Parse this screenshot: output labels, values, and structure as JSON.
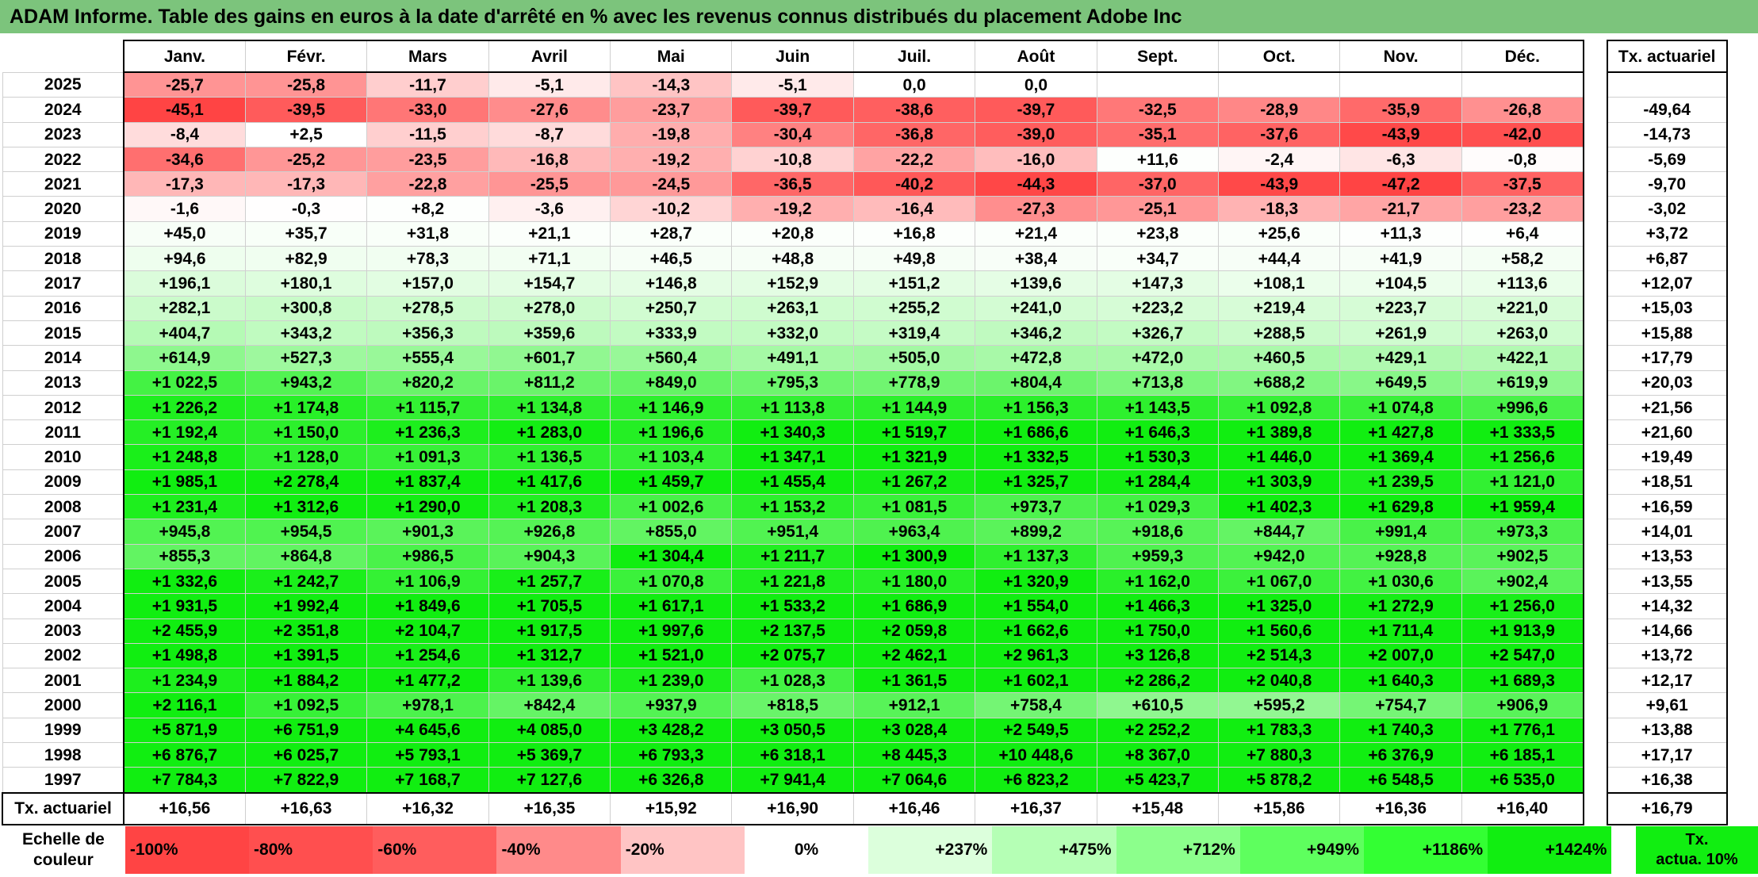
{
  "title": "ADAM Informe. Table des gains en euros à la date d'arrêté en % avec les revenus connus distribués du placement Adobe Inc",
  "months": [
    "Janv.",
    "Févr.",
    "Mars",
    "Avril",
    "Mai",
    "Juin",
    "Juil.",
    "Août",
    "Sept.",
    "Oct.",
    "Nov.",
    "Déc."
  ],
  "tx_header": "Tx. actuariel",
  "rows": [
    {
      "year": "2025",
      "values": [
        "-25,7",
        "-25,8",
        "-11,7",
        "-5,1",
        "-14,3",
        "-5,1",
        "0,0",
        "0,0",
        "",
        "",
        "",
        ""
      ],
      "tx": ""
    },
    {
      "year": "2024",
      "values": [
        "-45,1",
        "-39,5",
        "-33,0",
        "-27,6",
        "-23,7",
        "-39,7",
        "-38,6",
        "-39,7",
        "-32,5",
        "-28,9",
        "-35,9",
        "-26,8"
      ],
      "tx": "-49,64"
    },
    {
      "year": "2023",
      "values": [
        "-8,4",
        "+2,5",
        "-11,5",
        "-8,7",
        "-19,8",
        "-30,4",
        "-36,8",
        "-39,0",
        "-35,1",
        "-37,6",
        "-43,9",
        "-42,0"
      ],
      "tx": "-14,73"
    },
    {
      "year": "2022",
      "values": [
        "-34,6",
        "-25,2",
        "-23,5",
        "-16,8",
        "-19,2",
        "-10,8",
        "-22,2",
        "-16,0",
        "+11,6",
        "-2,4",
        "-6,3",
        "-0,8"
      ],
      "tx": "-5,69"
    },
    {
      "year": "2021",
      "values": [
        "-17,3",
        "-17,3",
        "-22,8",
        "-25,5",
        "-24,5",
        "-36,5",
        "-40,2",
        "-44,3",
        "-37,0",
        "-43,9",
        "-47,2",
        "-37,5"
      ],
      "tx": "-9,70"
    },
    {
      "year": "2020",
      "values": [
        "-1,6",
        "-0,3",
        "+8,2",
        "-3,6",
        "-10,2",
        "-19,2",
        "-16,4",
        "-27,3",
        "-25,1",
        "-18,3",
        "-21,7",
        "-23,2"
      ],
      "tx": "-3,02"
    },
    {
      "year": "2019",
      "values": [
        "+45,0",
        "+35,7",
        "+31,8",
        "+21,1",
        "+28,7",
        "+20,8",
        "+16,8",
        "+21,4",
        "+23,8",
        "+25,6",
        "+11,3",
        "+6,4"
      ],
      "tx": "+3,72"
    },
    {
      "year": "2018",
      "values": [
        "+94,6",
        "+82,9",
        "+78,3",
        "+71,1",
        "+46,5",
        "+48,8",
        "+49,8",
        "+38,4",
        "+34,7",
        "+44,4",
        "+41,9",
        "+58,2"
      ],
      "tx": "+6,87"
    },
    {
      "year": "2017",
      "values": [
        "+196,1",
        "+180,1",
        "+157,0",
        "+154,7",
        "+146,8",
        "+152,9",
        "+151,2",
        "+139,6",
        "+147,3",
        "+108,1",
        "+104,5",
        "+113,6"
      ],
      "tx": "+12,07"
    },
    {
      "year": "2016",
      "values": [
        "+282,1",
        "+300,8",
        "+278,5",
        "+278,0",
        "+250,7",
        "+263,1",
        "+255,2",
        "+241,0",
        "+223,2",
        "+219,4",
        "+223,7",
        "+221,0"
      ],
      "tx": "+15,03"
    },
    {
      "year": "2015",
      "values": [
        "+404,7",
        "+343,2",
        "+356,3",
        "+359,6",
        "+333,9",
        "+332,0",
        "+319,4",
        "+346,2",
        "+326,7",
        "+288,5",
        "+261,9",
        "+263,0"
      ],
      "tx": "+15,88"
    },
    {
      "year": "2014",
      "values": [
        "+614,9",
        "+527,3",
        "+555,4",
        "+601,7",
        "+560,4",
        "+491,1",
        "+505,0",
        "+472,8",
        "+472,0",
        "+460,5",
        "+429,1",
        "+422,1"
      ],
      "tx": "+17,79"
    },
    {
      "year": "2013",
      "values": [
        "+1 022,5",
        "+943,2",
        "+820,2",
        "+811,2",
        "+849,0",
        "+795,3",
        "+778,9",
        "+804,4",
        "+713,8",
        "+688,2",
        "+649,5",
        "+619,9"
      ],
      "tx": "+20,03"
    },
    {
      "year": "2012",
      "values": [
        "+1 226,2",
        "+1 174,8",
        "+1 115,7",
        "+1 134,8",
        "+1 146,9",
        "+1 113,8",
        "+1 144,9",
        "+1 156,3",
        "+1 143,5",
        "+1 092,8",
        "+1 074,8",
        "+996,6"
      ],
      "tx": "+21,56"
    },
    {
      "year": "2011",
      "values": [
        "+1 192,4",
        "+1 150,0",
        "+1 236,3",
        "+1 283,0",
        "+1 196,6",
        "+1 340,3",
        "+1 519,7",
        "+1 686,6",
        "+1 646,3",
        "+1 389,8",
        "+1 427,8",
        "+1 333,5"
      ],
      "tx": "+21,60"
    },
    {
      "year": "2010",
      "values": [
        "+1 248,8",
        "+1 128,0",
        "+1 091,3",
        "+1 136,5",
        "+1 103,4",
        "+1 347,1",
        "+1 321,9",
        "+1 332,5",
        "+1 530,3",
        "+1 446,0",
        "+1 369,4",
        "+1 256,6"
      ],
      "tx": "+19,49"
    },
    {
      "year": "2009",
      "values": [
        "+1 985,1",
        "+2 278,4",
        "+1 837,4",
        "+1 417,6",
        "+1 459,7",
        "+1 455,4",
        "+1 267,2",
        "+1 325,7",
        "+1 284,4",
        "+1 303,9",
        "+1 239,5",
        "+1 121,0"
      ],
      "tx": "+18,51"
    },
    {
      "year": "2008",
      "values": [
        "+1 231,4",
        "+1 312,6",
        "+1 290,0",
        "+1 208,3",
        "+1 002,6",
        "+1 153,2",
        "+1 081,5",
        "+973,7",
        "+1 029,3",
        "+1 402,3",
        "+1 629,8",
        "+1 959,4"
      ],
      "tx": "+16,59"
    },
    {
      "year": "2007",
      "values": [
        "+945,8",
        "+954,5",
        "+901,3",
        "+926,8",
        "+855,0",
        "+951,4",
        "+963,4",
        "+899,2",
        "+918,6",
        "+844,7",
        "+991,4",
        "+973,3"
      ],
      "tx": "+14,01"
    },
    {
      "year": "2006",
      "values": [
        "+855,3",
        "+864,8",
        "+986,5",
        "+904,3",
        "+1 304,4",
        "+1 211,7",
        "+1 300,9",
        "+1 137,3",
        "+959,3",
        "+942,0",
        "+928,8",
        "+902,5"
      ],
      "tx": "+13,53"
    },
    {
      "year": "2005",
      "values": [
        "+1 332,6",
        "+1 242,7",
        "+1 106,9",
        "+1 257,7",
        "+1 070,8",
        "+1 221,8",
        "+1 180,0",
        "+1 320,9",
        "+1 162,0",
        "+1 067,0",
        "+1 030,6",
        "+902,4"
      ],
      "tx": "+13,55"
    },
    {
      "year": "2004",
      "values": [
        "+1 931,5",
        "+1 992,4",
        "+1 849,6",
        "+1 705,5",
        "+1 617,1",
        "+1 533,2",
        "+1 686,9",
        "+1 554,0",
        "+1 466,3",
        "+1 325,0",
        "+1 272,9",
        "+1 256,0"
      ],
      "tx": "+14,32"
    },
    {
      "year": "2003",
      "values": [
        "+2 455,9",
        "+2 351,8",
        "+2 104,7",
        "+1 917,5",
        "+1 997,6",
        "+2 137,5",
        "+2 059,8",
        "+1 662,6",
        "+1 750,0",
        "+1 560,6",
        "+1 711,4",
        "+1 913,9"
      ],
      "tx": "+14,66"
    },
    {
      "year": "2002",
      "values": [
        "+1 498,8",
        "+1 391,5",
        "+1 254,6",
        "+1 312,7",
        "+1 521,0",
        "+2 075,7",
        "+2 462,1",
        "+2 961,3",
        "+3 126,8",
        "+2 514,3",
        "+2 007,0",
        "+2 547,0"
      ],
      "tx": "+13,72"
    },
    {
      "year": "2001",
      "values": [
        "+1 234,9",
        "+1 884,2",
        "+1 477,2",
        "+1 139,6",
        "+1 239,0",
        "+1 028,3",
        "+1 361,5",
        "+1 602,1",
        "+2 286,2",
        "+2 040,8",
        "+1 640,3",
        "+1 689,3"
      ],
      "tx": "+12,17"
    },
    {
      "year": "2000",
      "values": [
        "+2 116,1",
        "+1 092,5",
        "+978,1",
        "+842,4",
        "+937,9",
        "+818,5",
        "+912,1",
        "+758,4",
        "+610,5",
        "+595,2",
        "+754,7",
        "+906,9"
      ],
      "tx": "+9,61"
    },
    {
      "year": "1999",
      "values": [
        "+5 871,9",
        "+6 751,9",
        "+4 645,6",
        "+4 085,0",
        "+3 428,2",
        "+3 050,5",
        "+3 028,4",
        "+2 549,5",
        "+2 252,2",
        "+1 783,3",
        "+1 740,3",
        "+1 776,1"
      ],
      "tx": "+13,88"
    },
    {
      "year": "1998",
      "values": [
        "+6 876,7",
        "+6 025,7",
        "+5 793,1",
        "+5 369,7",
        "+6 793,3",
        "+6 318,1",
        "+8 445,3",
        "+10 448,6",
        "+8 367,0",
        "+7 880,3",
        "+6 376,9",
        "+6 185,1"
      ],
      "tx": "+17,17"
    },
    {
      "year": "1997",
      "values": [
        "+7 784,3",
        "+7 822,9",
        "+7 168,7",
        "+7 127,6",
        "+6 326,8",
        "+7 941,4",
        "+7 064,6",
        "+6 823,2",
        "+5 423,7",
        "+5 878,2",
        "+6 548,5",
        "+6 535,0"
      ],
      "tx": "+16,38"
    }
  ],
  "summary": {
    "label": "Tx. actuariel",
    "values": [
      "+16,56",
      "+16,63",
      "+16,32",
      "+16,35",
      "+15,92",
      "+16,90",
      "+16,46",
      "+16,37",
      "+15,48",
      "+15,86",
      "+16,36",
      "+16,40"
    ],
    "tx": "+16,79"
  },
  "scale": {
    "label_line1": "Echelle de",
    "label_line2": "couleur",
    "steps": [
      {
        "label": "-100%",
        "color": "#ff4444"
      },
      {
        "label": "-80%",
        "color": "#ff4f4f"
      },
      {
        "label": "-60%",
        "color": "#ff5d5d"
      },
      {
        "label": "-40%",
        "color": "#ff8a8a"
      },
      {
        "label": "-20%",
        "color": "#ffc4c4"
      },
      {
        "label": "0%",
        "color": "#ffffff"
      },
      {
        "label": "+237%",
        "color": "#dcffdc"
      },
      {
        "label": "+475%",
        "color": "#b5ffb5"
      },
      {
        "label": "+712%",
        "color": "#8cff8c"
      },
      {
        "label": "+949%",
        "color": "#5eff5e"
      },
      {
        "label": "+1186%",
        "color": "#33ff33"
      },
      {
        "label": "+1424%",
        "color": "#11ee11"
      }
    ],
    "tx_line1": "Tx.",
    "tx_line2": "actua. 10%",
    "tx_color": "#11ee11"
  },
  "colors": {
    "title_bg": "#7cc47c",
    "max_green": "#11ee11",
    "max_red": "#ff4444"
  }
}
